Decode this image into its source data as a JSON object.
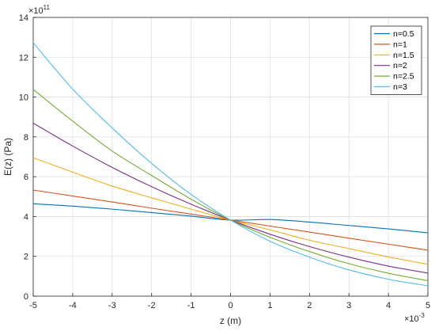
{
  "chart_data": {
    "type": "line",
    "xlabel": "z (m)",
    "ylabel": "E(z) (Pa)",
    "x_exponent_label": "×10",
    "x_exponent": "-3",
    "y_exponent_label": "×10",
    "y_exponent": "11",
    "xlim": [
      -5,
      5
    ],
    "ylim": [
      0,
      14
    ],
    "x_ticks": [
      -5,
      -4,
      -3,
      -2,
      -1,
      0,
      1,
      2,
      3,
      4,
      5
    ],
    "y_ticks": [
      0,
      2,
      4,
      6,
      8,
      10,
      12,
      14
    ],
    "grid": true,
    "legend_position": "top-right",
    "series": [
      {
        "name": "n=0.5",
        "color": "#0072BD",
        "x": [
          -5,
          -4,
          -3,
          -2,
          -1,
          0,
          1,
          2,
          3,
          4,
          5
        ],
        "y": [
          4.64,
          4.52,
          4.37,
          4.2,
          4.02,
          3.82,
          3.85,
          3.72,
          3.55,
          3.38,
          3.18
        ]
      },
      {
        "name": "n=1",
        "color": "#D95319",
        "x": [
          -5,
          -4,
          -3,
          -2,
          -1,
          0,
          1,
          2,
          3,
          4,
          5
        ],
        "y": [
          5.33,
          5.03,
          4.73,
          4.42,
          4.12,
          3.82,
          3.52,
          3.22,
          2.91,
          2.61,
          2.31
        ]
      },
      {
        "name": "n=1.5",
        "color": "#EDB120",
        "x": [
          -5,
          -4,
          -3,
          -2,
          -1,
          0,
          1,
          2,
          3,
          4,
          5
        ],
        "y": [
          6.95,
          6.23,
          5.53,
          4.94,
          4.37,
          3.82,
          3.33,
          2.81,
          2.39,
          1.97,
          1.6
        ]
      },
      {
        "name": "n=2",
        "color": "#7E2F8E",
        "x": [
          -5,
          -4,
          -3,
          -2,
          -1,
          0,
          1,
          2,
          3,
          4,
          5
        ],
        "y": [
          8.69,
          7.54,
          6.47,
          5.5,
          4.62,
          3.82,
          3.11,
          2.49,
          1.96,
          1.51,
          1.16
        ]
      },
      {
        "name": "n=2.5",
        "color": "#77AC30",
        "x": [
          -5,
          -4,
          -3,
          -2,
          -1,
          0,
          1,
          2,
          3,
          4,
          5
        ],
        "y": [
          10.38,
          8.79,
          7.29,
          6.06,
          4.87,
          3.82,
          2.96,
          2.24,
          1.63,
          1.15,
          0.78
        ]
      },
      {
        "name": "n=3",
        "color": "#4DBEEE",
        "x": [
          -5,
          -4,
          -3,
          -2,
          -1,
          0,
          1,
          2,
          3,
          4,
          5
        ],
        "y": [
          12.73,
          10.4,
          8.45,
          6.67,
          5.11,
          3.82,
          2.76,
          1.96,
          1.32,
          0.85,
          0.52
        ]
      }
    ]
  }
}
